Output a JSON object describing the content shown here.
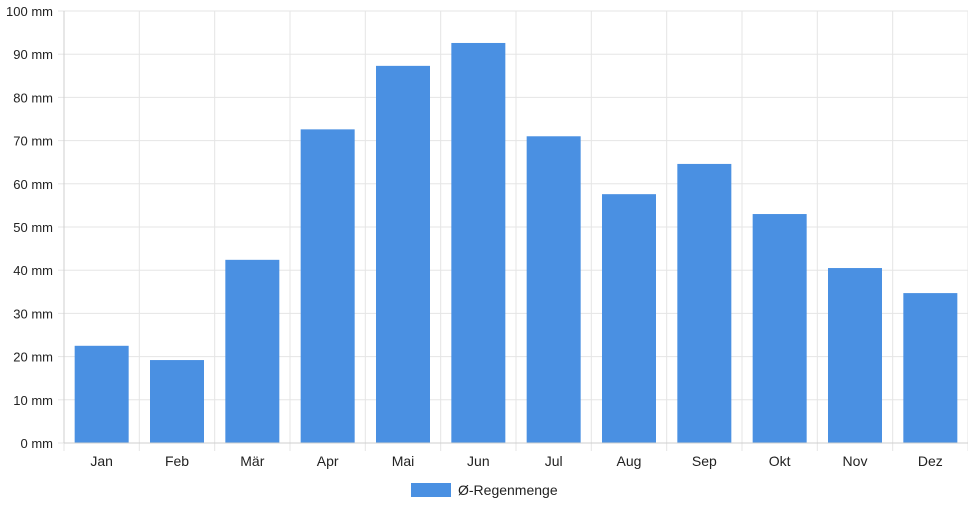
{
  "chart_data": {
    "type": "bar",
    "categories": [
      "Jan",
      "Feb",
      "Mär",
      "Apr",
      "Mai",
      "Jun",
      "Jul",
      "Aug",
      "Sep",
      "Okt",
      "Nov",
      "Dez"
    ],
    "series": [
      {
        "name": "Ø-Regenmenge",
        "values": [
          22.5,
          19.2,
          42.4,
          72.6,
          87.3,
          92.6,
          71.0,
          57.6,
          64.6,
          53.0,
          40.5,
          34.7
        ],
        "color": "#4a90e2"
      }
    ],
    "ylim": [
      0,
      100
    ],
    "yticks": [
      0,
      10,
      20,
      30,
      40,
      50,
      60,
      70,
      80,
      90,
      100
    ],
    "ytick_labels": [
      "0 mm",
      "10 mm",
      "20 mm",
      "30 mm",
      "40 mm",
      "50 mm",
      "60 mm",
      "70 mm",
      "80 mm",
      "90 mm",
      "100 mm"
    ],
    "grid": true,
    "legend": {
      "position": "bottom",
      "entries": [
        "Ø-Regenmenge"
      ]
    },
    "title": "",
    "xlabel": "",
    "ylabel": ""
  },
  "colors": {
    "bar": "#4a90e2",
    "grid": "#e5e5e5",
    "axis": "#cfcfcf",
    "text": "#222222"
  }
}
